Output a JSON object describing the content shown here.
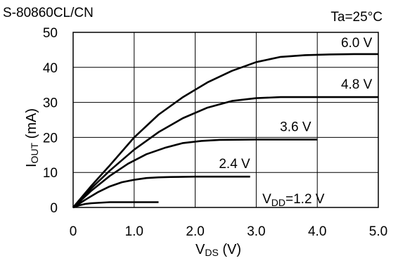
{
  "header": {
    "title_left": "S-80860CL/CN",
    "title_right": "Ta=25°C"
  },
  "chart_data": {
    "type": "line",
    "xlabel": {
      "main": "V",
      "sub": "DS",
      "unit": " (V)"
    },
    "ylabel": {
      "main": "I",
      "sub": "OUT",
      "unit": " (mA)"
    },
    "xlim": [
      0,
      5
    ],
    "ylim": [
      0,
      50
    ],
    "xticks": [
      "0",
      "1.0",
      "2.0",
      "3.0",
      "4.0",
      "5.0"
    ],
    "yticks": [
      "0",
      "10",
      "20",
      "30",
      "40",
      "50"
    ],
    "grid": true,
    "line_color": "#000000",
    "series": [
      {
        "name": "V_DD=1.2 V",
        "label": {
          "main": "V",
          "sub": "DD",
          "rest": "=1.2 V"
        },
        "x": [
          0,
          0.1,
          0.2,
          0.3,
          0.4,
          0.5,
          0.6,
          1.0,
          1.4
        ],
        "y": [
          0,
          0.6,
          1.0,
          1.2,
          1.3,
          1.4,
          1.5,
          1.5,
          1.5
        ]
      },
      {
        "name": "2.4 V",
        "label": {
          "main": "2.4 V"
        },
        "x": [
          0,
          0.2,
          0.4,
          0.6,
          0.8,
          1.0,
          1.2,
          1.4,
          1.6,
          2.0,
          2.4,
          2.9
        ],
        "y": [
          0,
          2.2,
          4.3,
          6.0,
          7.2,
          7.9,
          8.4,
          8.6,
          8.7,
          8.8,
          8.8,
          8.8
        ]
      },
      {
        "name": "3.6 V",
        "label": {
          "main": "3.6 V"
        },
        "x": [
          0,
          0.3,
          0.6,
          0.9,
          1.2,
          1.5,
          1.8,
          2.1,
          2.4,
          3.0,
          3.5,
          4.0
        ],
        "y": [
          0,
          4.8,
          9.0,
          12.5,
          15.2,
          17.0,
          18.4,
          19.0,
          19.3,
          19.4,
          19.4,
          19.4
        ]
      },
      {
        "name": "4.8 V",
        "label": {
          "main": "4.8 V"
        },
        "x": [
          0,
          0.3,
          0.6,
          1.0,
          1.4,
          1.8,
          2.2,
          2.6,
          3.0,
          3.4,
          4.0,
          4.5,
          5.0
        ],
        "y": [
          0,
          5.5,
          10.5,
          16.5,
          21.5,
          25.5,
          28.5,
          30.4,
          31.2,
          31.5,
          31.5,
          31.5,
          31.5
        ]
      },
      {
        "name": "6.0 V",
        "label": {
          "main": "6.0 V"
        },
        "x": [
          0,
          0.3,
          0.6,
          1.0,
          1.4,
          1.8,
          2.2,
          2.6,
          3.0,
          3.4,
          3.8,
          4.2,
          4.6,
          5.0
        ],
        "y": [
          0,
          6.2,
          12.0,
          20.0,
          26.5,
          31.5,
          35.7,
          39.0,
          41.5,
          43.0,
          43.5,
          43.7,
          43.8,
          43.8
        ]
      }
    ]
  }
}
